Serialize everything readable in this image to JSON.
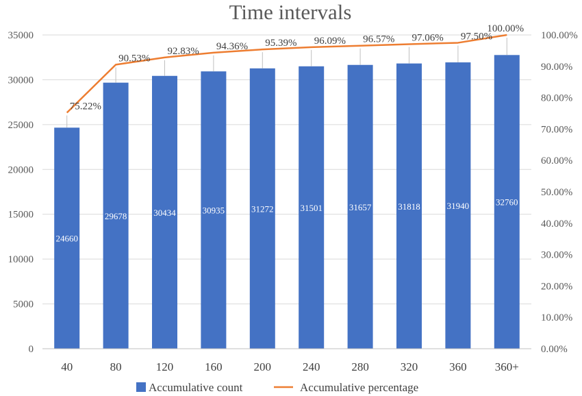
{
  "chart_data": {
    "type": "bar",
    "title": "Time intervals",
    "categories": [
      "40",
      "80",
      "120",
      "160",
      "200",
      "240",
      "280",
      "320",
      "360",
      "360+"
    ],
    "series": [
      {
        "name": "Accumulative count",
        "type": "bar",
        "axis": "left",
        "color": "#4472C4",
        "values": [
          24660,
          29678,
          30434,
          30935,
          31272,
          31501,
          31657,
          31818,
          31940,
          32760
        ],
        "labels": [
          "24660",
          "29678",
          "30434",
          "30935",
          "31272",
          "31501",
          "31657",
          "31818",
          "31940",
          "32760"
        ]
      },
      {
        "name": "Accumulative percentage",
        "type": "line",
        "axis": "right",
        "color": "#ED7D31",
        "values": [
          75.22,
          90.53,
          92.83,
          94.36,
          95.39,
          96.09,
          96.57,
          97.06,
          97.5,
          100.0
        ],
        "labels": [
          "75.22%",
          "90.53%",
          "92.83%",
          "94.36%",
          "95.39%",
          "96.09%",
          "96.57%",
          "97.06%",
          "97.50%",
          "100.00%"
        ]
      }
    ],
    "ylim": [
      0,
      35000
    ],
    "yticks": [
      "0",
      "5000",
      "10000",
      "15000",
      "20000",
      "25000",
      "30000",
      "35000"
    ],
    "y2lim": [
      0,
      100
    ],
    "y2ticks": [
      "0.00%",
      "10.00%",
      "20.00%",
      "30.00%",
      "40.00%",
      "50.00%",
      "60.00%",
      "70.00%",
      "80.00%",
      "90.00%",
      "100.00%"
    ],
    "grid": true,
    "legend": "bottom"
  }
}
